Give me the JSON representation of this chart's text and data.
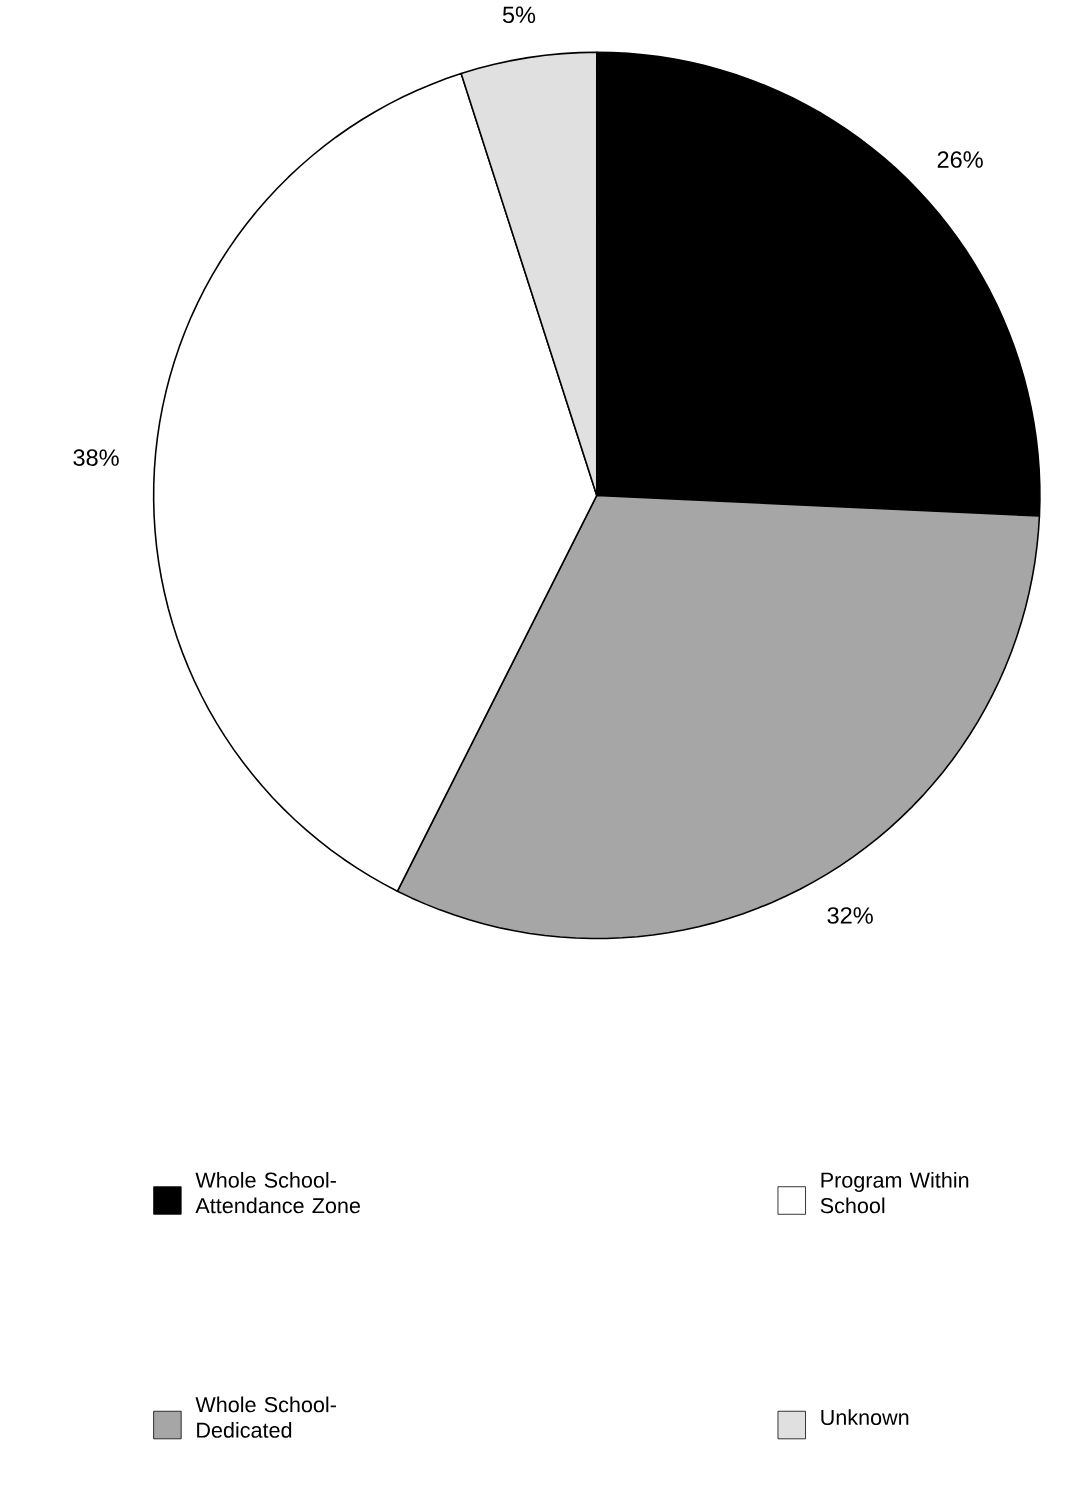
{
  "chart_data": {
    "type": "pie",
    "categories": [
      "Whole School-Attendance Zone",
      "Whole School-Dedicated",
      "Program Within School",
      "Unknown"
    ],
    "values": [
      26,
      32,
      38,
      5
    ],
    "colors": [
      "#000000",
      "#a6a6a6",
      "#ffffff",
      "#e0e0e0"
    ],
    "value_labels": [
      "26%",
      "32%",
      "38%",
      "5%"
    ],
    "legend": "bottom"
  }
}
